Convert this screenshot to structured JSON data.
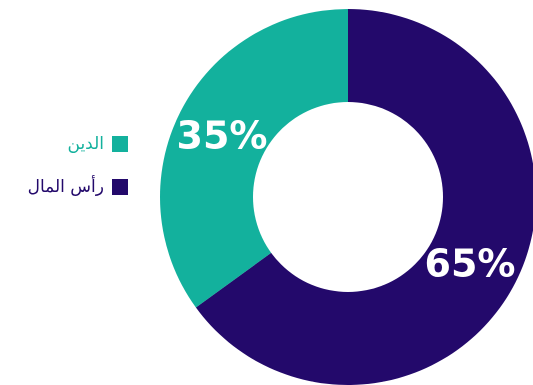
{
  "chart_data": {
    "type": "pie",
    "donut": true,
    "slices": [
      {
        "label": "رأس المال",
        "value": 65,
        "display": "65%",
        "color": "#23096b"
      },
      {
        "label": "الدين",
        "value": 35,
        "display": "35%",
        "color": "#13b19d"
      }
    ],
    "legend_position": "left",
    "title": ""
  }
}
